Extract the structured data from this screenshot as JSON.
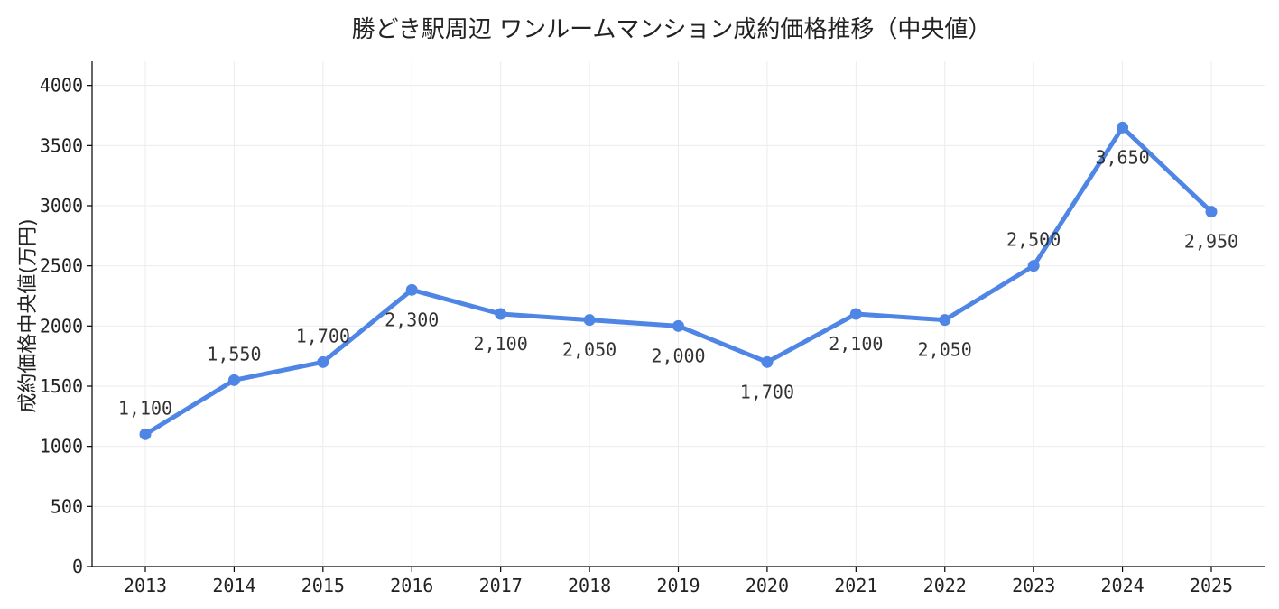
{
  "chart_data": {
    "type": "line",
    "title": "勝どき駅周辺 ワンルームマンション成約価格推移（中央値）",
    "xlabel": "",
    "ylabel": "成約価格中央値(万円)",
    "categories": [
      "2013",
      "2014",
      "2015",
      "2016",
      "2017",
      "2018",
      "2019",
      "2020",
      "2021",
      "2022",
      "2023",
      "2024",
      "2025"
    ],
    "series": [
      {
        "values": [
          1100,
          1550,
          1700,
          2300,
          2100,
          2050,
          2000,
          1700,
          2100,
          2050,
          2500,
          3650,
          2950
        ],
        "data_labels": [
          "1,100",
          "1,550",
          "1,700",
          "2,300",
          "2,100",
          "2,050",
          "2,000",
          "1,700",
          "2,100",
          "2,050",
          "2,500",
          "3,650",
          "2,950"
        ],
        "color": "#4f86e6"
      }
    ],
    "ylim": [
      0,
      4200
    ],
    "yticks": [
      0,
      500,
      1000,
      1500,
      2000,
      2500,
      3000,
      3500,
      4000
    ],
    "grid": true,
    "legend": "none"
  }
}
